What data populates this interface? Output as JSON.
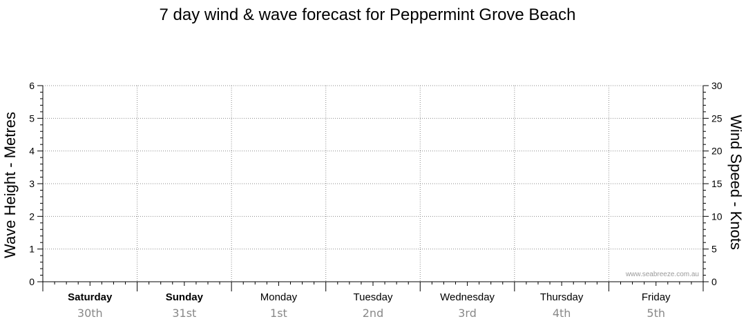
{
  "chart_data": {
    "type": "line",
    "title": "7 day wind & wave forecast for Peppermint Grove Beach",
    "ylabel_left": "Wave Height - Metres",
    "ylabel_right": "Wind Speed - Knots",
    "ylim_left": [
      0,
      6
    ],
    "ylim_right": [
      0,
      30
    ],
    "yticks_left": [
      "0",
      "1",
      "2",
      "3",
      "4",
      "5",
      "6"
    ],
    "yticks_right": [
      "0",
      "5",
      "10",
      "15",
      "20",
      "25",
      "30"
    ],
    "grid": true,
    "days": [
      {
        "day": "Saturday",
        "date": "30th",
        "bold": true
      },
      {
        "day": "Sunday",
        "date": "31st",
        "bold": true
      },
      {
        "day": "Monday",
        "date": "1st",
        "bold": false
      },
      {
        "day": "Tuesday",
        "date": "2nd",
        "bold": false
      },
      {
        "day": "Wednesday",
        "date": "3rd",
        "bold": false
      },
      {
        "day": "Thursday",
        "date": "4th",
        "bold": false
      },
      {
        "day": "Friday",
        "date": "5th",
        "bold": false
      }
    ],
    "series": [],
    "watermark": "www.seabreeze.com.au"
  }
}
